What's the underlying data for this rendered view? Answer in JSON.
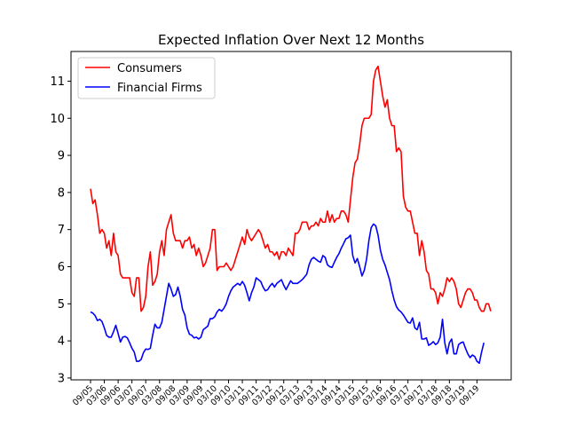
{
  "chart_data": {
    "type": "line",
    "title": "Expected Inflation Over Next 12 Months",
    "xlabel": "",
    "ylabel": "",
    "xlim": [
      0,
      174
    ],
    "ylim": [
      2.95,
      11.8
    ],
    "yticks": [
      3,
      4,
      5,
      6,
      7,
      8,
      9,
      10,
      11
    ],
    "xtick_labels": [
      "09/05",
      "03/06",
      "09/06",
      "03/07",
      "09/07",
      "03/08",
      "09/08",
      "03/09",
      "09/09",
      "03/10",
      "09/10",
      "03/11",
      "09/11",
      "03/12",
      "09/12",
      "03/13",
      "09/13",
      "03/14",
      "09/14",
      "03/15",
      "09/15",
      "03/16",
      "09/16",
      "03/17",
      "09/17",
      "03/18",
      "09/18",
      "03/19",
      "09/19"
    ],
    "xtick_step": 6,
    "legend": "top-left",
    "grid": false,
    "series": [
      {
        "name": "Consumers",
        "color": "#ff0000",
        "values": [
          8.1,
          7.7,
          7.8,
          7.4,
          6.9,
          7.0,
          6.9,
          6.5,
          6.7,
          6.3,
          6.9,
          6.4,
          6.3,
          5.8,
          5.7,
          5.7,
          5.7,
          5.7,
          5.3,
          5.2,
          5.7,
          5.7,
          4.8,
          4.9,
          5.2,
          6.0,
          6.4,
          5.5,
          5.6,
          5.8,
          6.4,
          6.7,
          6.3,
          7.0,
          7.2,
          7.4,
          6.9,
          6.7,
          6.7,
          6.7,
          6.5,
          6.7,
          6.7,
          6.8,
          6.5,
          6.6,
          6.3,
          6.5,
          6.3,
          6.0,
          6.1,
          6.3,
          6.5,
          7.0,
          7.0,
          5.9,
          6.0,
          6.0,
          6.0,
          6.1,
          6.0,
          5.9,
          6.0,
          6.2,
          6.4,
          6.6,
          6.8,
          6.6,
          7.0,
          6.8,
          6.7,
          6.8,
          6.9,
          7.0,
          6.9,
          6.7,
          6.5,
          6.6,
          6.4,
          6.4,
          6.3,
          6.4,
          6.2,
          6.4,
          6.4,
          6.3,
          6.5,
          6.4,
          6.3,
          6.9,
          6.9,
          7.0,
          7.2,
          7.2,
          7.2,
          7.0,
          7.1,
          7.1,
          7.2,
          7.1,
          7.3,
          7.2,
          7.2,
          7.5,
          7.2,
          7.4,
          7.2,
          7.3,
          7.3,
          7.5,
          7.5,
          7.4,
          7.2,
          7.8,
          8.4,
          8.8,
          8.9,
          9.3,
          9.8,
          10.0,
          10.0,
          10.0,
          10.1,
          11.0,
          11.3,
          11.4,
          11.0,
          10.6,
          10.3,
          10.5,
          10.0,
          9.8,
          9.8,
          9.1,
          9.2,
          9.1,
          7.9,
          7.6,
          7.5,
          7.5,
          7.2,
          6.9,
          6.9,
          6.3,
          6.7,
          6.4,
          5.9,
          5.8,
          5.4,
          5.4,
          5.3,
          5.0,
          5.3,
          5.2,
          5.4,
          5.7,
          5.6,
          5.7,
          5.6,
          5.4,
          5.0,
          4.9,
          5.1,
          5.3,
          5.4,
          5.4,
          5.3,
          5.1,
          5.1,
          4.9,
          4.8,
          4.8,
          5.0,
          5.0,
          4.8
        ]
      },
      {
        "name": "Financial Firms",
        "color": "#0000ff",
        "values": [
          4.78,
          4.75,
          4.68,
          4.55,
          4.58,
          4.52,
          4.35,
          4.15,
          4.1,
          4.1,
          4.25,
          4.42,
          4.2,
          3.97,
          4.1,
          4.12,
          4.08,
          3.95,
          3.8,
          3.7,
          3.45,
          3.45,
          3.5,
          3.68,
          3.78,
          3.77,
          3.8,
          4.15,
          4.45,
          4.35,
          4.35,
          4.5,
          4.85,
          5.2,
          5.55,
          5.4,
          5.2,
          5.25,
          5.45,
          5.2,
          4.85,
          4.7,
          4.35,
          4.18,
          4.15,
          4.08,
          4.1,
          4.05,
          4.1,
          4.3,
          4.35,
          4.4,
          4.6,
          4.6,
          4.65,
          4.78,
          4.85,
          4.8,
          4.88,
          5.0,
          5.2,
          5.35,
          5.45,
          5.5,
          5.55,
          5.5,
          5.6,
          5.5,
          5.3,
          5.08,
          5.3,
          5.45,
          5.7,
          5.65,
          5.6,
          5.45,
          5.35,
          5.38,
          5.48,
          5.55,
          5.45,
          5.55,
          5.6,
          5.65,
          5.5,
          5.38,
          5.5,
          5.62,
          5.55,
          5.55,
          5.55,
          5.6,
          5.65,
          5.72,
          5.8,
          6.05,
          6.2,
          6.25,
          6.2,
          6.15,
          6.12,
          6.3,
          6.25,
          6.05,
          6.0,
          5.98,
          6.12,
          6.25,
          6.35,
          6.5,
          6.62,
          6.75,
          6.78,
          6.85,
          6.3,
          6.1,
          6.22,
          6.0,
          5.75,
          5.9,
          6.2,
          6.7,
          7.05,
          7.15,
          7.1,
          6.85,
          6.45,
          6.2,
          6.05,
          5.85,
          5.65,
          5.35,
          5.1,
          4.92,
          4.83,
          4.78,
          4.7,
          4.6,
          4.5,
          4.48,
          4.62,
          4.35,
          4.3,
          4.5,
          4.05,
          4.05,
          4.08,
          3.88,
          3.92,
          3.98,
          3.9,
          3.95,
          4.1,
          4.58,
          3.95,
          3.65,
          3.95,
          4.05,
          3.65,
          3.65,
          3.9,
          3.95,
          3.97,
          3.8,
          3.65,
          3.55,
          3.62,
          3.58,
          3.45,
          3.4,
          3.7,
          3.95
        ]
      }
    ]
  }
}
